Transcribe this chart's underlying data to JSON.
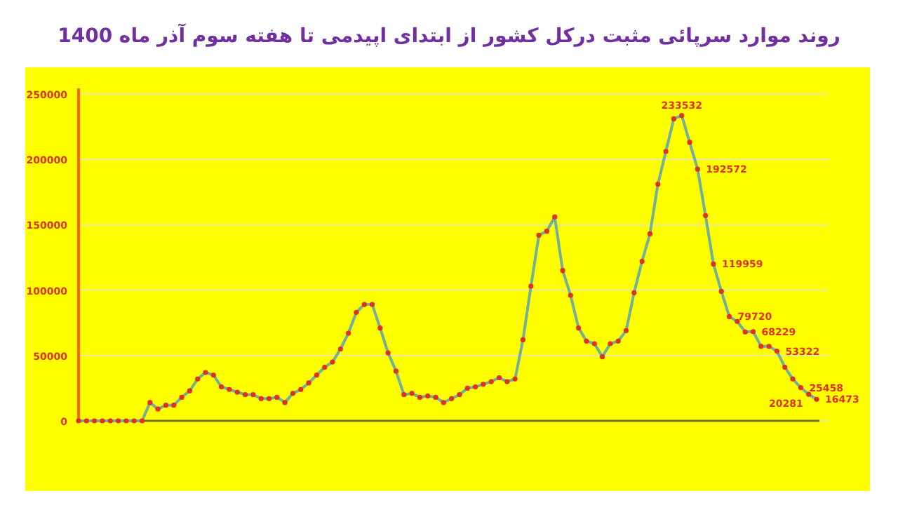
{
  "chart_data": {
    "type": "line",
    "title": "روند موارد سرپائی مثبت  درکل کشور از ابتدای اپیدمی تا هفته سوم آذر ماه 1400",
    "categories": [
      null,
      null,
      null,
      null,
      null,
      null,
      null,
      null,
      null,
      null,
      null,
      null,
      null,
      null,
      null,
      null,
      null,
      null,
      null,
      null,
      null,
      null,
      null,
      null,
      null,
      null,
      null,
      null,
      null,
      null,
      null,
      null,
      null,
      null,
      null,
      null,
      null,
      null,
      null,
      null,
      null,
      null,
      null,
      null,
      null,
      null,
      null,
      null,
      null,
      null,
      null,
      null,
      null,
      null,
      null,
      null,
      null,
      null,
      null,
      null,
      null,
      null,
      null,
      null,
      null,
      null,
      null,
      null,
      null,
      null,
      null,
      null,
      null,
      null,
      null,
      null,
      null,
      null,
      null,
      null,
      null,
      null,
      null,
      null,
      null,
      null,
      null,
      null,
      null,
      null,
      null,
      null,
      null,
      null
    ],
    "series": [
      {
        "color": "#72b09a",
        "values": [
          0,
          0,
          0,
          0,
          0,
          0,
          0,
          0,
          0,
          14000,
          9000,
          12000,
          12000,
          18000,
          23000,
          32000,
          37000,
          35000,
          26000,
          24000,
          22000,
          20000,
          20000,
          17000,
          17000,
          18000,
          14000,
          21000,
          24000,
          29000,
          35000,
          41000,
          45000,
          55000,
          67000,
          83000,
          89000,
          89000,
          71000,
          52000,
          38000,
          20000,
          21000,
          18000,
          19000,
          18000,
          14000,
          17000,
          20000,
          25000,
          26000,
          28000,
          30000,
          33000,
          30000,
          32000,
          62000,
          103000,
          142000,
          145000,
          156000,
          115000,
          96000,
          71000,
          61000,
          59000,
          49000,
          59000,
          61000,
          69000,
          98000,
          122000,
          143000,
          181000,
          206000,
          231000,
          233532,
          213000,
          192572,
          157000,
          119959,
          99000,
          79720,
          76000,
          68000,
          68229,
          57000,
          57000,
          53322,
          41000,
          32000,
          25458,
          20281,
          16473
        ],
        "colors": [
          "#e0301e",
          "#e0301e",
          "#e0301e",
          "#e0301e",
          "#e0301e",
          "#e0301e",
          "#e0301e",
          "#e0301e",
          "#e0301e",
          "#e0301e",
          "#e0301e",
          "#e0301e",
          "#e0301e",
          "#e0301e",
          "#e0301e",
          "#e0301e",
          "#e0301e",
          "#e0301e",
          "#e0301e",
          "#e0301e",
          "#e0301e",
          "#e0301e",
          "#e0301e",
          "#e0301e",
          "#e0301e",
          "#e0301e",
          "#e0301e",
          "#e0301e",
          "#e0301e",
          "#e0301e",
          "#e0301e",
          "#e0301e",
          "#e0301e",
          "#e0301e",
          "#e0301e",
          "#e0301e",
          "#e0301e",
          "#e0301e",
          "#e0301e",
          "#e0301e",
          "#e0301e",
          "#e0301e",
          "#e0301e",
          "#e0301e",
          "#e0301e",
          "#e0301e",
          "#e0301e",
          "#e0301e",
          "#e0301e",
          "#e0301e",
          "#e0301e",
          "#e0301e",
          "#e0301e",
          "#e0301e",
          "#e0301e",
          "#e0301e",
          "#e0301e",
          "#e0301e",
          "#e0301e",
          "#e0301e",
          "#e0301e",
          "#e0301e",
          "#e0301e",
          "#e0301e",
          "#e0301e",
          "#e0301e",
          "#e0301e",
          "#e0301e",
          "#e0301e",
          "#e0301e",
          "#e0301e",
          "#e0301e",
          "#e0301e",
          "#e0301e",
          "#e0301e",
          "#e0301e",
          "#e0301e",
          "#e0301e",
          "#e0301e",
          "#e0301e",
          "#e0301e",
          "#e0301e",
          "#e0301e",
          "#e0301e",
          "#e0301e",
          "#e0301e",
          "#e0301e",
          "#e0301e",
          "#e0301e",
          "#e0301e",
          "#e0301e",
          "#e0301e",
          "#e0301e",
          "#e0301e"
        ],
        "value_labels": [
          null,
          null,
          null,
          null,
          null,
          null,
          null,
          null,
          null,
          null,
          null,
          null,
          null,
          null,
          null,
          null,
          null,
          null,
          null,
          null,
          null,
          null,
          null,
          null,
          null,
          null,
          null,
          null,
          null,
          null,
          null,
          null,
          null,
          null,
          null,
          null,
          null,
          null,
          null,
          null,
          null,
          null,
          null,
          null,
          null,
          null,
          null,
          null,
          null,
          null,
          null,
          null,
          null,
          null,
          null,
          null,
          null,
          null,
          null,
          null,
          null,
          null,
          null,
          null,
          null,
          null,
          null,
          null,
          null,
          null,
          null,
          null,
          null,
          null,
          null,
          null,
          "233532",
          null,
          "192572",
          null,
          "119959",
          null,
          "79720",
          null,
          null,
          "68229",
          null,
          null,
          "53322",
          null,
          null,
          "25458",
          "20281",
          "16473"
        ]
      }
    ],
    "ylim": [
      0,
      250000
    ],
    "yticks": [
      0,
      50000,
      100000,
      150000,
      200000,
      250000
    ],
    "grid": "y",
    "marker": "circle"
  }
}
